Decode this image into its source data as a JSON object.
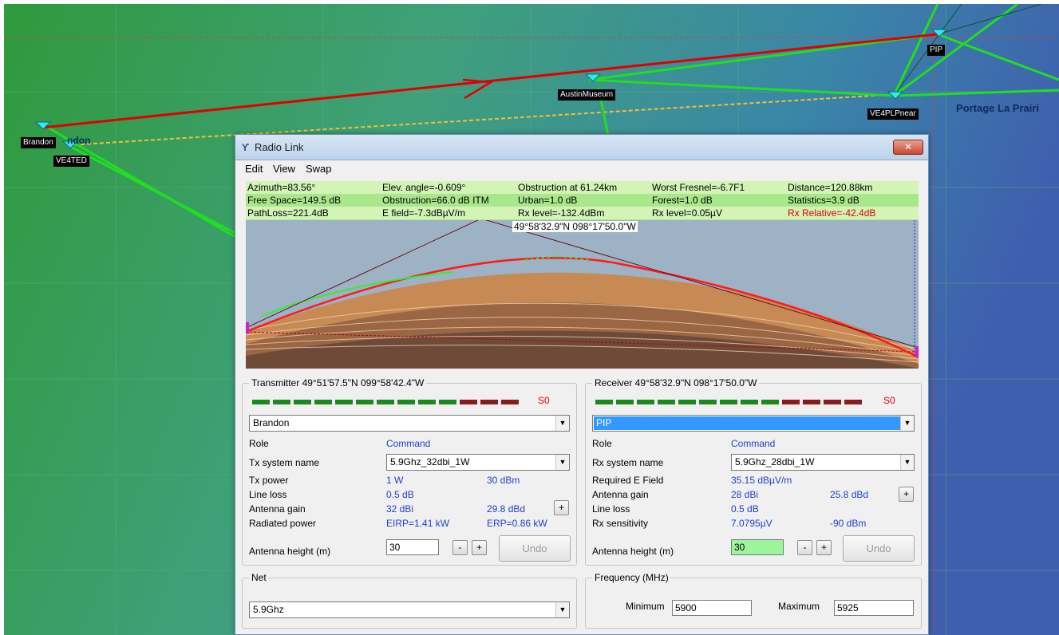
{
  "map": {
    "labels": {
      "brandon": "Brandon",
      "ve4ted": "VE4TED",
      "austin_museum": "AustinMuseum",
      "ve4plpnear": "VE4PLPnear",
      "pip": "PIP",
      "portage": "Portage La Prairi",
      "brandon_partial": "ndon"
    }
  },
  "dialog": {
    "title": "Radio Link",
    "menu": [
      "Edit",
      "View",
      "Swap"
    ],
    "stats": {
      "row1": [
        "Azimuth=83.56°",
        "Elev. angle=-0.609°",
        "Obstruction at 61.24km",
        "Worst Fresnel=-6.7F1",
        "Distance=120.88km"
      ],
      "row2": [
        "Free Space=149.5 dB",
        "Obstruction=66.0 dB ITM",
        "Urban=1.0 dB",
        "Forest=1.0 dB",
        "Statistics=3.9 dB"
      ],
      "row3": [
        "PathLoss=221.4dB",
        "E field=-7.3dBµV/m",
        "Rx level=-132.4dBm",
        "Rx level=0.05µV",
        "Rx Relative=-42.4dB"
      ]
    },
    "profile": {
      "peak_coord": "49°58'32.9\"N 098°17'50.0\"W"
    },
    "transmitter": {
      "legend": "Transmitter 49°51'57.5\"N 099°58'42.4\"W",
      "meter_label": "S0",
      "station": "Brandon",
      "role_label": "Role",
      "role_value": "Command",
      "system_label": "Tx system name",
      "system_value": "5.9Ghz_32dbi_1W",
      "power_label": "Tx power",
      "power_w": "1 W",
      "power_dbm": "30 dBm",
      "line_loss_label": "Line loss",
      "line_loss": "0.5 dB",
      "gain_label": "Antenna gain",
      "gain_dbi": "32 dBi",
      "gain_dbd": "29.8 dBd",
      "radiated_label": "Radiated power",
      "eirp": "EIRP=1.41 kW",
      "erp": "ERP=0.86 kW",
      "height_label": "Antenna height (m)",
      "height_value": "30",
      "minus": "-",
      "plus": "+",
      "undo": "Undo"
    },
    "receiver": {
      "legend": "Receiver 49°58'32.9\"N 098°17'50.0\"W",
      "meter_label": "S0",
      "station": "PIP",
      "role_label": "Role",
      "role_value": "Command",
      "system_label": "Rx system name",
      "system_value": "5.9Ghz_28dbi_1W",
      "efield_label": "Required E Field",
      "efield_value": "35.15 dBµV/m",
      "gain_label": "Antenna gain",
      "gain_dbi": "28 dBi",
      "gain_dbd": "25.8 dBd",
      "line_loss_label": "Line loss",
      "line_loss": "0.5 dB",
      "sens_label": "Rx sensitivity",
      "sens_uv": "7.0795µV",
      "sens_dbm": "-90 dBm",
      "height_label": "Antenna height (m)",
      "height_value": "30",
      "minus": "-",
      "plus": "+",
      "undo": "Undo"
    },
    "net": {
      "legend": "Net",
      "value": "5.9Ghz"
    },
    "frequency": {
      "legend": "Frequency (MHz)",
      "min_label": "Minimum",
      "min_value": "5900",
      "max_label": "Maximum",
      "max_value": "5925"
    }
  },
  "colors": {
    "link_red": "#e00000",
    "link_green": "#22dd22",
    "meter_green": "#1a8a1a",
    "meter_red": "#8b1a1a"
  }
}
